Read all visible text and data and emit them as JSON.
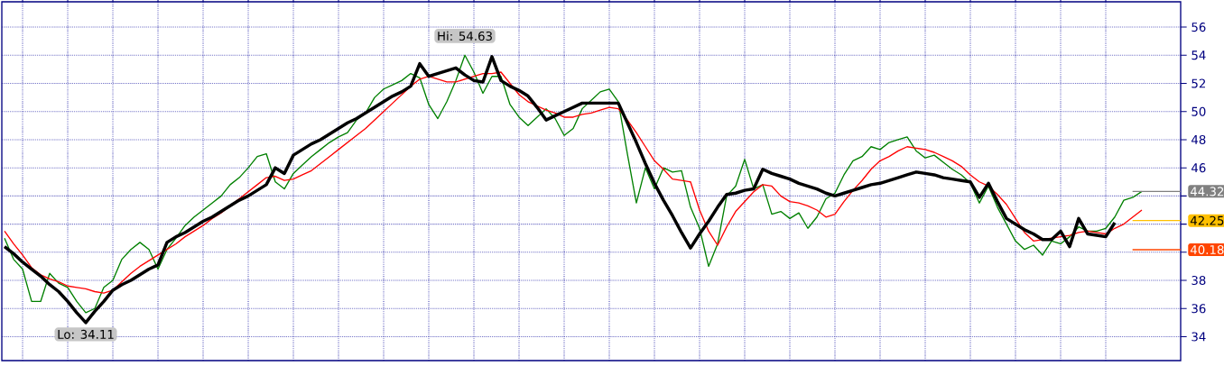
{
  "chart_data": {
    "type": "line",
    "annotations": [
      "Hi: 54.63",
      "Lo: 34.11"
    ],
    "categories": [
      null,
      null,
      null,
      null,
      null,
      null,
      null,
      null,
      null,
      null,
      null,
      null,
      null,
      null,
      null,
      null,
      null,
      null,
      null,
      null,
      null,
      null,
      null,
      null,
      null,
      null,
      null,
      null,
      null,
      null,
      null,
      null,
      null,
      null,
      null,
      null,
      null,
      null,
      null,
      null,
      null,
      null,
      null,
      null,
      null,
      null,
      null,
      null,
      null,
      null,
      null,
      null,
      null,
      null,
      null,
      null,
      null,
      null,
      null,
      null,
      null,
      null,
      null,
      null,
      null,
      null,
      null,
      null,
      null,
      null,
      null,
      null,
      null,
      null,
      null,
      null,
      null,
      null,
      null,
      null,
      null,
      null,
      null,
      null,
      null,
      null,
      null,
      null,
      null,
      null,
      null,
      null,
      null,
      null,
      null,
      null,
      null,
      null,
      null,
      null,
      null,
      null,
      null,
      null,
      null,
      null,
      null,
      null,
      null,
      null,
      null,
      null,
      null,
      null,
      null,
      null,
      null,
      null,
      null,
      null,
      null,
      null,
      null,
      null,
      null,
      null,
      null
    ],
    "series": [
      {
        "color": "#008000",
        "values": [
          41.0,
          39.5,
          38.8,
          36.5,
          36.5,
          38.5,
          37.8,
          37.5,
          36.5,
          35.7,
          36.0,
          37.5,
          38.0,
          39.5,
          40.2,
          40.7,
          40.2,
          38.8,
          40.2,
          41.0,
          41.9,
          42.5,
          43.0,
          43.5,
          44.0,
          44.8,
          45.3,
          46.0,
          46.8,
          47.0,
          45.0,
          44.5,
          45.6,
          46.2,
          46.8,
          47.3,
          47.8,
          48.2,
          48.5,
          49.4,
          49.9,
          51.0,
          51.6,
          51.9,
          52.2,
          52.7,
          52.4,
          50.5,
          49.5,
          50.7,
          52.2,
          54.0,
          52.8,
          51.3,
          52.5,
          52.5,
          50.5,
          49.6,
          49.0,
          49.6,
          50.2,
          49.5,
          48.3,
          48.8,
          50.2,
          50.8,
          51.4,
          51.6,
          50.7,
          47.0,
          43.5,
          46.0,
          44.5,
          46.0,
          45.7,
          45.8,
          43.2,
          41.7,
          39.0,
          40.6,
          44.0,
          44.7,
          46.6,
          44.5,
          44.8,
          42.7,
          42.9,
          42.4,
          42.8,
          41.7,
          42.5,
          43.8,
          44.2,
          45.5,
          46.5,
          46.8,
          47.5,
          47.3,
          47.8,
          48.0,
          48.2,
          47.2,
          46.7,
          46.9,
          46.4,
          45.9,
          45.5,
          44.9,
          43.5,
          44.7,
          43.2,
          42.0,
          40.8,
          40.2,
          40.5,
          39.8,
          40.8,
          40.6,
          41.1,
          41.8,
          41.5,
          41.5,
          41.7,
          42.5,
          43.7,
          43.9,
          44.32
        ]
      },
      {
        "color": "#ff0000",
        "values": [
          41.5,
          40.6,
          39.8,
          38.9,
          38.4,
          38.1,
          37.9,
          37.6,
          37.5,
          37.4,
          37.2,
          37.1,
          37.3,
          37.9,
          38.5,
          39.0,
          39.4,
          39.8,
          40.2,
          40.6,
          41.1,
          41.5,
          41.9,
          42.4,
          42.8,
          43.3,
          43.8,
          44.3,
          44.8,
          45.3,
          45.4,
          45.1,
          45.2,
          45.5,
          45.8,
          46.3,
          46.8,
          47.3,
          47.8,
          48.3,
          48.8,
          49.4,
          50.0,
          50.6,
          51.2,
          51.8,
          52.3,
          52.5,
          52.3,
          52.1,
          52.1,
          52.3,
          52.5,
          52.7,
          52.7,
          52.8,
          52.0,
          51.2,
          50.7,
          50.4,
          50.1,
          49.9,
          49.6,
          49.6,
          49.8,
          49.9,
          50.1,
          50.3,
          50.2,
          49.4,
          48.5,
          47.5,
          46.5,
          45.9,
          45.2,
          45.1,
          45.0,
          43.0,
          41.5,
          40.5,
          41.8,
          42.9,
          43.6,
          44.3,
          44.8,
          44.7,
          44.0,
          43.6,
          43.5,
          43.3,
          43.0,
          42.5,
          42.7,
          43.6,
          44.4,
          45.1,
          45.9,
          46.5,
          46.8,
          47.2,
          47.5,
          47.4,
          47.3,
          47.1,
          46.8,
          46.5,
          46.1,
          45.5,
          45.0,
          44.7,
          44.1,
          43.4,
          42.4,
          41.4,
          40.8,
          40.9,
          41.0,
          41.1,
          41.2,
          41.4,
          41.5,
          41.4,
          41.3,
          41.7,
          42.0,
          42.5,
          43.0
        ]
      },
      {
        "color": "#000000",
        "values": [
          40.4,
          39.9,
          39.3,
          38.8,
          38.3,
          37.7,
          37.2,
          36.5,
          35.7,
          35.0,
          35.8,
          36.5,
          37.3,
          37.7,
          38.0,
          38.4,
          38.8,
          39.1,
          40.7,
          41.1,
          41.4,
          41.8,
          42.2,
          42.5,
          42.9,
          43.3,
          43.7,
          44.0,
          44.4,
          44.8,
          46.0,
          45.6,
          46.9,
          47.3,
          47.7,
          48.0,
          48.4,
          48.8,
          49.2,
          49.5,
          49.9,
          50.3,
          50.7,
          51.1,
          51.4,
          51.8,
          53.4,
          52.5,
          52.7,
          52.9,
          53.1,
          52.6,
          52.2,
          52.1,
          53.9,
          52.2,
          51.8,
          51.5,
          51.1,
          50.3,
          49.4,
          49.7,
          50.0,
          50.3,
          50.6,
          50.6,
          50.6,
          50.6,
          50.6,
          49.2,
          47.8,
          46.3,
          44.9,
          43.7,
          42.6,
          41.4,
          40.3,
          41.3,
          42.2,
          43.2,
          44.1,
          44.2,
          44.4,
          44.5,
          45.9,
          45.6,
          45.4,
          45.2,
          44.9,
          44.7,
          44.5,
          44.2,
          44.0,
          44.2,
          44.4,
          44.6,
          44.8,
          44.9,
          45.1,
          45.3,
          45.5,
          45.7,
          45.6,
          45.5,
          45.3,
          45.2,
          45.1,
          45.0,
          43.9,
          44.9,
          43.6,
          42.4,
          42.0,
          41.6,
          41.3,
          40.9,
          40.9,
          41.5,
          40.4,
          42.4,
          41.3,
          41.2,
          41.1,
          42.1,
          null,
          null,
          null
        ]
      }
    ],
    "ylim": [
      32.3,
      57.8
    ],
    "yticks": [
      34,
      36,
      38,
      {
        "value": 40,
        "label": null
      },
      {
        "value": 42,
        "label": null
      },
      {
        "value": 44,
        "label": null
      },
      46,
      48,
      50,
      52,
      54,
      56
    ],
    "tick_labels": "y",
    "grid": true,
    "ref_lines": [
      {
        "axis": "y",
        "value": 44.32,
        "label": "44.32",
        "color": "#808080"
      },
      {
        "axis": "y",
        "value": 42.25,
        "label": "42.25",
        "color": "#ffc000"
      },
      {
        "axis": "y",
        "value": 40.18,
        "label": "40.18",
        "color": "#ff4500"
      }
    ]
  }
}
